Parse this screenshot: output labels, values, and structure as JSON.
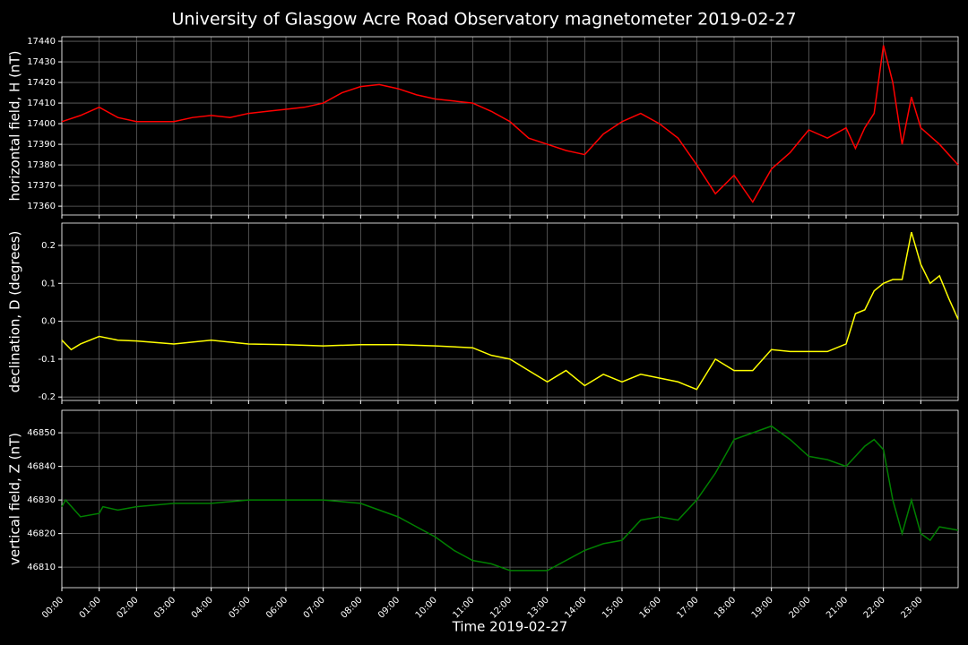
{
  "chart_data": [
    {
      "type": "line",
      "title": "University of Glasgow Acre Road Observatory magnetometer 2019-02-27",
      "ylabel": "horizontal field, H (nT)",
      "color": "#ff0000",
      "x": [
        0,
        0.5,
        1,
        1.5,
        2,
        2.5,
        3,
        3.5,
        4,
        4.5,
        5,
        5.5,
        6,
        6.5,
        7,
        7.5,
        8,
        8.5,
        9,
        9.5,
        10,
        10.5,
        11,
        11.5,
        12,
        12.5,
        13,
        13.5,
        14,
        14.5,
        15,
        15.5,
        16,
        16.5,
        17,
        17.5,
        18,
        18.5,
        19,
        19.5,
        20,
        20.5,
        21,
        21.25,
        21.5,
        21.75,
        22,
        22.25,
        22.5,
        22.75,
        23,
        23.5,
        24
      ],
      "values": [
        17401,
        17404,
        17408,
        17403,
        17401,
        17401,
        17401,
        17403,
        17404,
        17403,
        17405,
        17406,
        17407,
        17408,
        17410,
        17415,
        17418,
        17419,
        17417,
        17414,
        17412,
        17411,
        17410,
        17406,
        17401,
        17393,
        17390,
        17387,
        17385,
        17395,
        17401,
        17405,
        17400,
        17393,
        17380,
        17366,
        17375,
        17362,
        17378,
        17386,
        17397,
        17393,
        17398,
        17388,
        17398,
        17405,
        17438,
        17420,
        17390,
        17413,
        17398,
        17390,
        17380
      ],
      "xlim": [
        0,
        24
      ],
      "xticks": [
        0,
        1,
        2,
        3,
        4,
        5,
        6,
        7,
        8,
        9,
        10,
        11,
        12,
        13,
        14,
        15,
        16,
        17,
        18,
        19,
        20,
        21,
        22,
        23
      ],
      "ylim": [
        17355.7,
        17442.2
      ],
      "yticks": [
        17360,
        17370,
        17380,
        17390,
        17400,
        17410,
        17420,
        17430,
        17440
      ],
      "grid": true
    },
    {
      "type": "line",
      "ylabel": "declination, D (degrees)",
      "color": "#ffff00",
      "x": [
        0,
        0.25,
        0.5,
        1,
        1.5,
        2,
        3,
        4,
        5,
        6,
        7,
        8,
        9,
        10,
        11,
        11.5,
        12,
        12.5,
        13,
        13.5,
        14,
        14.5,
        15,
        15.5,
        16,
        16.5,
        17,
        17.5,
        18,
        18.5,
        19,
        19.5,
        20,
        20.5,
        21,
        21.25,
        21.5,
        21.75,
        22,
        22.25,
        22.5,
        22.75,
        23,
        23.25,
        23.5,
        23.75,
        24
      ],
      "values": [
        -0.05,
        -0.075,
        -0.06,
        -0.04,
        -0.05,
        -0.052,
        -0.06,
        -0.05,
        -0.06,
        -0.062,
        -0.065,
        -0.062,
        -0.062,
        -0.065,
        -0.07,
        -0.09,
        -0.1,
        -0.13,
        -0.16,
        -0.13,
        -0.17,
        -0.14,
        -0.16,
        -0.14,
        -0.15,
        -0.16,
        -0.18,
        -0.1,
        -0.13,
        -0.13,
        -0.075,
        -0.08,
        -0.08,
        -0.08,
        -0.06,
        0.02,
        0.03,
        0.08,
        0.1,
        0.11,
        0.11,
        0.235,
        0.15,
        0.1,
        0.12,
        0.06,
        0.005
      ],
      "xlim": [
        0,
        24
      ],
      "xticks": [
        0,
        1,
        2,
        3,
        4,
        5,
        6,
        7,
        8,
        9,
        10,
        11,
        12,
        13,
        14,
        15,
        16,
        17,
        18,
        19,
        20,
        21,
        22,
        23
      ],
      "ylim": [
        -0.209,
        0.259
      ],
      "yticks": [
        -0.2,
        -0.1,
        {
          "value": 0,
          "label": "0.0"
        },
        0.1,
        0.2
      ],
      "grid": true
    },
    {
      "type": "line",
      "ylabel": "vertical field, Z (nT)",
      "xlabel": "Time 2019-02-27",
      "color": "#008000",
      "x": [
        0,
        0.1,
        0.5,
        1,
        1.1,
        1.5,
        2,
        3,
        4,
        5,
        6,
        7,
        8,
        8.5,
        9,
        9.5,
        10,
        10.5,
        11,
        11.5,
        12,
        12.5,
        13,
        13.5,
        14,
        14.5,
        15,
        15.5,
        16,
        16.5,
        17,
        17.5,
        18,
        18.5,
        19,
        19.5,
        20,
        20.5,
        21,
        21.5,
        21.75,
        22,
        22.25,
        22.5,
        22.75,
        23,
        23.25,
        23.5,
        24
      ],
      "values": [
        46828,
        46830,
        46825,
        46826,
        46828,
        46827,
        46828,
        46829,
        46829,
        46830,
        46830,
        46830,
        46829,
        46827,
        46825,
        46822,
        46819,
        46815,
        46812,
        46811,
        46809,
        46809,
        46809,
        46812,
        46815,
        46817,
        46818,
        46824,
        46825,
        46824,
        46830,
        46838,
        46848,
        46850,
        46852,
        46848,
        46843,
        46842,
        46840,
        46846,
        46848,
        46845,
        46830,
        46820,
        46830,
        46820,
        46818,
        46822,
        46821
      ],
      "xlim": [
        0,
        24
      ],
      "xticks": [
        {
          "value": 0,
          "label": "00:00"
        },
        {
          "value": 1,
          "label": "01:00"
        },
        {
          "value": 2,
          "label": "02:00"
        },
        {
          "value": 3,
          "label": "03:00"
        },
        {
          "value": 4,
          "label": "04:00"
        },
        {
          "value": 5,
          "label": "05:00"
        },
        {
          "value": 6,
          "label": "06:00"
        },
        {
          "value": 7,
          "label": "07:00"
        },
        {
          "value": 8,
          "label": "08:00"
        },
        {
          "value": 9,
          "label": "09:00"
        },
        {
          "value": 10,
          "label": "10:00"
        },
        {
          "value": 11,
          "label": "11:00"
        },
        {
          "value": 12,
          "label": "12:00"
        },
        {
          "value": 13,
          "label": "13:00"
        },
        {
          "value": 14,
          "label": "14:00"
        },
        {
          "value": 15,
          "label": "15:00"
        },
        {
          "value": 16,
          "label": "16:00"
        },
        {
          "value": 17,
          "label": "17:00"
        },
        {
          "value": 18,
          "label": "18:00"
        },
        {
          "value": 19,
          "label": "19:00"
        },
        {
          "value": 20,
          "label": "20:00"
        },
        {
          "value": 21,
          "label": "21:00"
        },
        {
          "value": 22,
          "label": "22:00"
        },
        {
          "value": 23,
          "label": "23:00"
        }
      ],
      "ylim": [
        46803.9,
        46856.7
      ],
      "yticks": [
        46810,
        46820,
        46830,
        46840,
        46850
      ],
      "grid": true
    }
  ]
}
